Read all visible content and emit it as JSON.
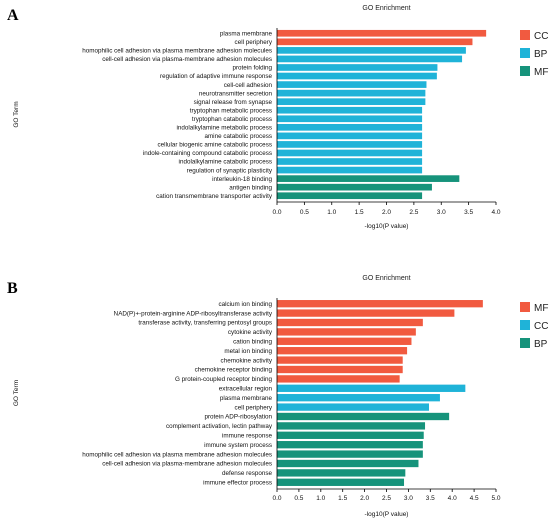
{
  "chart_data": [
    {
      "panel_label": "A",
      "type": "bar",
      "orientation": "horizontal",
      "title": "GO Enrichment",
      "xlabel": "-log10(P value)",
      "ylabel": "GO Term",
      "xlim": [
        0,
        4.0
      ],
      "xticks": [
        "0.0",
        "0.5",
        "1.0",
        "1.5",
        "2.0",
        "2.5",
        "3.0",
        "3.5",
        "4.0"
      ],
      "grid": false,
      "legend_position": "right",
      "legend": [
        {
          "name": "CC",
          "color": "#f15a40"
        },
        {
          "name": "BP",
          "color": "#1fb3d8"
        },
        {
          "name": "MF",
          "color": "#16937b"
        }
      ],
      "categories": [
        "plasma membrane",
        "cell periphery",
        "homophilic cell adhesion via plasma membrane adhesion molecules",
        "cell-cell adhesion via plasma-membrane adhesion molecules",
        "protein folding",
        "regulation of adaptive immune response",
        "cell-cell adhesion",
        "neurotransmitter secretion",
        "signal release from synapse",
        "tryptophan metabolic process",
        "tryptophan catabolic process",
        "indolalkylamine metabolic process",
        "amine catabolic process",
        "cellular biogenic amine catabolic process",
        "indole-containing compound catabolic process",
        "indolalkylamine catabolic process",
        "regulation of synaptic plasticity",
        "interleukin-18 binding",
        "antigen binding",
        "cation transmembrane transporter activity"
      ],
      "values": [
        3.82,
        3.57,
        3.45,
        3.38,
        2.93,
        2.92,
        2.73,
        2.71,
        2.71,
        2.65,
        2.65,
        2.65,
        2.65,
        2.65,
        2.65,
        2.65,
        2.65,
        3.33,
        2.83,
        2.65
      ],
      "groups": [
        "CC",
        "CC",
        "BP",
        "BP",
        "BP",
        "BP",
        "BP",
        "BP",
        "BP",
        "BP",
        "BP",
        "BP",
        "BP",
        "BP",
        "BP",
        "BP",
        "BP",
        "MF",
        "MF",
        "MF"
      ]
    },
    {
      "panel_label": "B",
      "type": "bar",
      "orientation": "horizontal",
      "title": "GO Enrichment",
      "xlabel": "-log10(P value)",
      "ylabel": "GO Term",
      "xlim": [
        0,
        5.0
      ],
      "xticks": [
        "0.0",
        "0.5",
        "1.0",
        "1.5",
        "2.0",
        "2.5",
        "3.0",
        "3.5",
        "4.0",
        "4.5",
        "5.0"
      ],
      "grid": false,
      "legend_position": "right",
      "legend": [
        {
          "name": "MF",
          "color": "#f15a40"
        },
        {
          "name": "CC",
          "color": "#1fb3d8"
        },
        {
          "name": "BP",
          "color": "#16937b"
        }
      ],
      "categories": [
        "calcium ion binding",
        "NAD(P)+-protein-arginine ADP-ribosyltransferase activity",
        "transferase activity, transferring pentosyl groups",
        "cytokine activity",
        "cation binding",
        "metal ion binding",
        "chemokine activity",
        "chemokine receptor binding",
        "G protein-coupled receptor binding",
        "extracellular region",
        "plasma membrane",
        "cell periphery",
        "protein ADP-ribosylation",
        "complement activation, lectin pathway",
        "immune response",
        "immune system process",
        "homophilic cell adhesion via plasma membrane adhesion molecules",
        "cell-cell adhesion via plasma-membrane adhesion molecules",
        "defense response",
        "immune effector process"
      ],
      "values": [
        4.7,
        4.05,
        3.33,
        3.17,
        3.07,
        2.97,
        2.87,
        2.87,
        2.8,
        4.3,
        3.72,
        3.47,
        3.93,
        3.38,
        3.35,
        3.33,
        3.33,
        3.23,
        2.93,
        2.9
      ],
      "groups": [
        "MF",
        "MF",
        "MF",
        "MF",
        "MF",
        "MF",
        "MF",
        "MF",
        "MF",
        "CC",
        "CC",
        "CC",
        "BP",
        "BP",
        "BP",
        "BP",
        "BP",
        "BP",
        "BP",
        "BP"
      ]
    }
  ]
}
